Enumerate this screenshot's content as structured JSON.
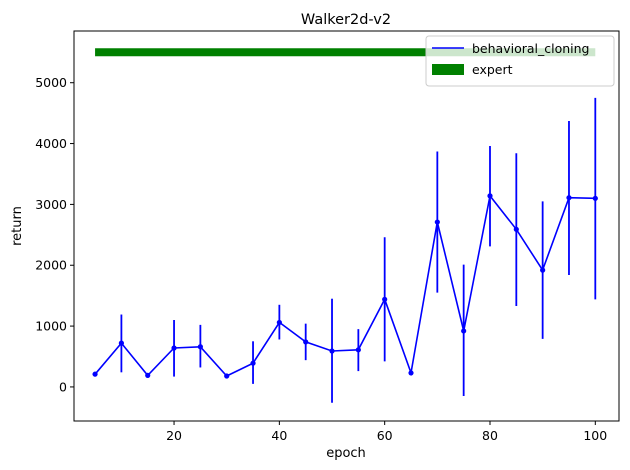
{
  "chart_data": {
    "type": "line",
    "title": "Walker2d-v2",
    "xlabel": "epoch",
    "ylabel": "return",
    "xlim": [
      1,
      104.5
    ],
    "ylim": [
      -560,
      5850
    ],
    "xticks": [
      20,
      40,
      60,
      80,
      100
    ],
    "yticks": [
      0,
      1000,
      2000,
      3000,
      4000,
      5000
    ],
    "grid": false,
    "legend_position": "top-right",
    "series": [
      {
        "name": "behavioral_cloning",
        "color": "#0000ff",
        "marker": "dot",
        "x": [
          5,
          10,
          15,
          20,
          25,
          30,
          35,
          40,
          45,
          50,
          55,
          60,
          65,
          70,
          75,
          80,
          85,
          90,
          95,
          100
        ],
        "y": [
          210,
          720,
          190,
          640,
          660,
          180,
          390,
          1060,
          740,
          590,
          610,
          1440,
          230,
          2710,
          920,
          3140,
          2590,
          1920,
          3110,
          3100
        ],
        "yerr_low": [
          210,
          240,
          190,
          170,
          320,
          180,
          50,
          780,
          440,
          -260,
          260,
          420,
          230,
          1550,
          -150,
          2310,
          1330,
          790,
          1840,
          1440
        ],
        "yerr_high": [
          210,
          1190,
          190,
          1100,
          1020,
          180,
          750,
          1350,
          1040,
          1450,
          950,
          2460,
          230,
          3870,
          2010,
          3960,
          3840,
          3050,
          4370,
          4750
        ]
      },
      {
        "name": "expert",
        "color": "#008000",
        "style": "thick-band",
        "x": [
          5,
          100
        ],
        "y": [
          5500,
          5500
        ]
      }
    ]
  }
}
